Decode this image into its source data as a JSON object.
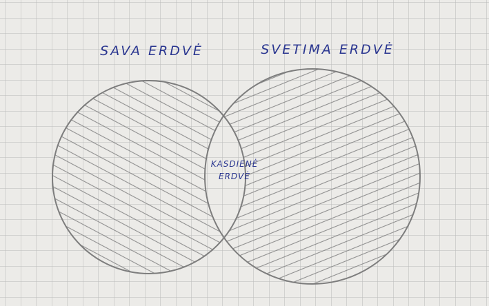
{
  "labels": {
    "left": "SAVA ERDVĖ",
    "right": "SVETIMA ERDVĖ",
    "center": [
      "KASDIENĖ",
      "ERDVĖ"
    ]
  }
}
